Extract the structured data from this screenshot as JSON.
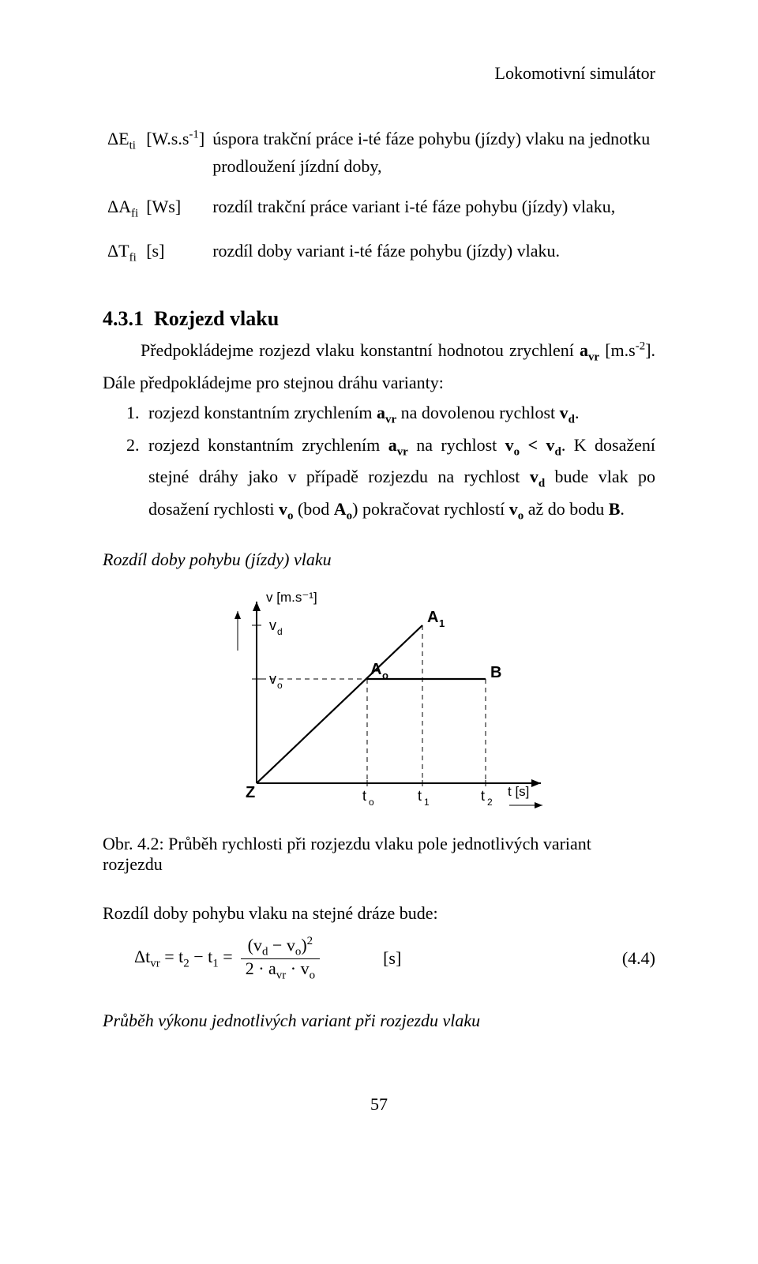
{
  "header": {
    "running": "Lokomotivní simulátor"
  },
  "definitions": [
    {
      "sym": "ΔE<sub>ti</sub>",
      "unit": "[W.s.s<sup>-1</sup>]",
      "desc": "úspora trakční práce i-té fáze pohybu (jízdy) vlaku na jednotku prodloužení jízdní doby,"
    },
    {
      "sym": "ΔA<sub>fi</sub>",
      "unit": "[Ws]",
      "desc": "rozdíl trakční práce variant i-té fáze pohybu (jízdy) vlaku,"
    },
    {
      "sym": "ΔT<sub>fi</sub>",
      "unit": "[s]",
      "desc": "rozdíl doby variant i-té fáze pohybu (jízdy) vlaku."
    }
  ],
  "section": {
    "number": "4.3.1",
    "title": "Rozjezd vlaku",
    "para": "Předpokládejme rozjezd vlaku konstantní hodnotou zrychlení <b>a<sub>vr</sub></b> [m.s<sup>-2</sup>]. Dále předpokládejme pro stejnou dráhu varianty:",
    "items": [
      "rozjezd konstantním zrychlením <b>a<sub>vr</sub></b> na dovolenou rychlost <b>v<sub>d</sub></b>.",
      "rozjezd konstantním zrychlením <b>a<sub>vr</sub></b> na rychlost <b>v<sub>o</sub> &lt; v<sub>d</sub></b>. K dosažení stejné dráhy jako v případě rozjezdu na rychlost <b>v<sub>d</sub></b> bude vlak po dosažení rychlosti <b>v<sub>o</sub></b> (bod <b>A<sub>o</sub></b>) pokračovat rychlostí <b>v<sub>o</sub></b> až do bodu <b>B</b>."
    ],
    "subhead": "Rozdíl doby pohybu (jízdy) vlaku"
  },
  "figure": {
    "yaxis_label": "v [m.s⁻¹]",
    "xaxis_label": "t [s]",
    "labels": {
      "vd": "v",
      "vd_sub": "d",
      "vo": "v",
      "vo_sub": "o",
      "A1": "A",
      "A1_sub": "1",
      "Ao": "A",
      "Ao_sub": "o",
      "B": "B",
      "Z": "Z",
      "to": "t",
      "to_sub": "o",
      "t1": "t",
      "t1_sub": "1",
      "t2": "t",
      "t2_sub": "2"
    },
    "caption": "Obr. 4.2: Průběh rychlosti při rozjezdu vlaku pole jednotlivých variant rozjezdu"
  },
  "eq_intro": "Rozdíl doby pohybu vlaku na stejné dráze bude:",
  "equation": {
    "lhs": "Δt<sub>vr</sub> = t<sub>2</sub> − t<sub>1</sub> =",
    "num": "(v<sub>d</sub> − v<sub>o</sub>)<sup>2</sup>",
    "den": "2 · a<sub>vr</sub> · v<sub>o</sub>",
    "unit": "[s]",
    "number": "(4.4)"
  },
  "footer_subhead": "Průběh výkonu jednotlivých variant při rozjezdu vlaku",
  "page_number": "57"
}
